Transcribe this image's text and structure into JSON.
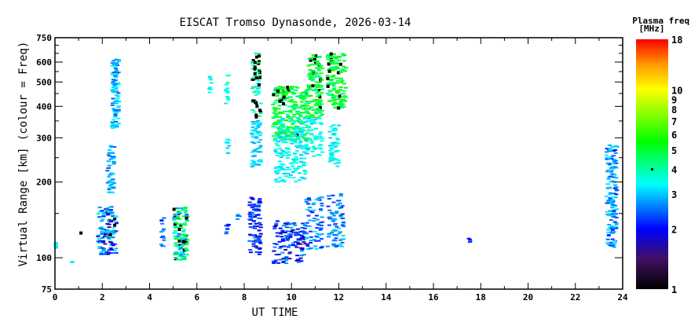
{
  "chart_data": {
    "type": "scatter",
    "title": "EISCAT Tromso Dynasonde, 2026-03-14",
    "xlabel": "UT TIME",
    "ylabel": "Virtual Range [km] (colour = Freq)",
    "xlim": [
      0,
      24
    ],
    "ylim": [
      75,
      750
    ],
    "yscale": "log",
    "xticks": [
      0,
      2,
      4,
      6,
      8,
      10,
      12,
      14,
      16,
      18,
      20,
      22,
      24
    ],
    "xticks_minor_step": 1,
    "yticks": [
      75,
      100,
      200,
      300,
      400,
      500,
      600,
      750
    ],
    "yticks_minor": [
      150,
      250,
      350,
      450,
      550,
      650,
      700
    ],
    "colorbar": {
      "label_line1": "Plasma freq.",
      "label_line2": "[MHz]",
      "range": [
        1,
        18
      ],
      "scale": "log",
      "ticks": [
        1,
        2,
        3,
        4,
        5,
        6,
        7,
        8,
        9,
        10,
        18
      ],
      "marker_value": 4,
      "colors": [
        "#000000",
        "#401060",
        "#0000ff",
        "#00ffff",
        "#00ff00",
        "#ffff00",
        "#ff9900",
        "#ff0000"
      ]
    },
    "note": "echo clusters: hour range, virtual range km, plasma freq MHz, approx echo count, fraction of black (low-confidence) points",
    "clusters": [
      {
        "t": [
          0.0,
          0.05
        ],
        "km": [
          108,
          116
        ],
        "f": [
          3.0,
          3.5
        ],
        "n": 6,
        "black": 0
      },
      {
        "t": [
          0.7,
          0.75
        ],
        "km": [
          95,
          98
        ],
        "f": [
          3.0,
          3.3
        ],
        "n": 3,
        "black": 0
      },
      {
        "t": [
          1.05,
          1.1
        ],
        "km": [
          124,
          127
        ],
        "f": [
          1.0,
          1.1
        ],
        "n": 1,
        "black": 1
      },
      {
        "t": [
          1.8,
          2.6
        ],
        "km": [
          103,
          160
        ],
        "f": [
          1.5,
          3.5
        ],
        "n": 120,
        "black": 0.03
      },
      {
        "t": [
          2.2,
          2.5
        ],
        "km": [
          180,
          280
        ],
        "f": [
          2.4,
          3.2
        ],
        "n": 50,
        "black": 0
      },
      {
        "t": [
          2.4,
          2.7
        ],
        "km": [
          320,
          630
        ],
        "f": [
          2.3,
          3.6
        ],
        "n": 90,
        "black": 0
      },
      {
        "t": [
          4.45,
          4.6
        ],
        "km": [
          108,
          155
        ],
        "f": [
          2.0,
          3.0
        ],
        "n": 14,
        "black": 0
      },
      {
        "t": [
          5.0,
          5.6
        ],
        "km": [
          98,
          160
        ],
        "f": [
          2.5,
          5.5
        ],
        "n": 140,
        "black": 0.12
      },
      {
        "t": [
          6.5,
          6.6
        ],
        "km": [
          445,
          530
        ],
        "f": [
          3.2,
          3.8
        ],
        "n": 8,
        "black": 0
      },
      {
        "t": [
          7.2,
          7.35
        ],
        "km": [
          260,
          300
        ],
        "f": [
          3.0,
          3.6
        ],
        "n": 10,
        "black": 0
      },
      {
        "t": [
          7.2,
          7.35
        ],
        "km": [
          400,
          540
        ],
        "f": [
          3.2,
          3.8
        ],
        "n": 14,
        "black": 0
      },
      {
        "t": [
          7.2,
          7.35
        ],
        "km": [
          118,
          140
        ],
        "f": [
          2.0,
          2.6
        ],
        "n": 8,
        "black": 0
      },
      {
        "t": [
          7.7,
          7.8
        ],
        "km": [
          135,
          150
        ],
        "f": [
          2.3,
          2.7
        ],
        "n": 4,
        "black": 0
      },
      {
        "t": [
          8.3,
          8.7
        ],
        "km": [
          360,
          650
        ],
        "f": [
          3.2,
          4.8
        ],
        "n": 60,
        "black": 0.3
      },
      {
        "t": [
          8.3,
          8.7
        ],
        "km": [
          230,
          350
        ],
        "f": [
          2.8,
          3.4
        ],
        "n": 60,
        "black": 0
      },
      {
        "t": [
          8.2,
          8.7
        ],
        "km": [
          100,
          175
        ],
        "f": [
          1.7,
          2.6
        ],
        "n": 90,
        "black": 0
      },
      {
        "t": [
          9.2,
          10.7
        ],
        "km": [
          290,
          480
        ],
        "f": [
          3.8,
          6.0
        ],
        "n": 260,
        "black": 0.06
      },
      {
        "t": [
          9.3,
          10.6
        ],
        "km": [
          200,
          360
        ],
        "f": [
          3.0,
          3.8
        ],
        "n": 170,
        "black": 0
      },
      {
        "t": [
          9.2,
          10.6
        ],
        "km": [
          95,
          140
        ],
        "f": [
          1.5,
          2.8
        ],
        "n": 130,
        "black": 0
      },
      {
        "t": [
          10.7,
          11.3
        ],
        "km": [
          360,
          640
        ],
        "f": [
          4.0,
          6.0
        ],
        "n": 140,
        "black": 0.05
      },
      {
        "t": [
          10.6,
          11.3
        ],
        "km": [
          250,
          360
        ],
        "f": [
          3.0,
          3.8
        ],
        "n": 60,
        "black": 0
      },
      {
        "t": [
          10.6,
          11.3
        ],
        "km": [
          108,
          175
        ],
        "f": [
          2.0,
          3.2
        ],
        "n": 70,
        "black": 0
      },
      {
        "t": [
          11.5,
          12.3
        ],
        "km": [
          390,
          650
        ],
        "f": [
          4.0,
          6.2
        ],
        "n": 150,
        "black": 0.1
      },
      {
        "t": [
          11.6,
          12.0
        ],
        "km": [
          230,
          340
        ],
        "f": [
          3.0,
          3.8
        ],
        "n": 50,
        "black": 0
      },
      {
        "t": [
          11.5,
          12.2
        ],
        "km": [
          110,
          180
        ],
        "f": [
          2.2,
          3.2
        ],
        "n": 80,
        "black": 0
      },
      {
        "t": [
          17.45,
          17.55
        ],
        "km": [
          112,
          122
        ],
        "f": [
          2.0,
          2.3
        ],
        "n": 4,
        "black": 0
      },
      {
        "t": [
          23.3,
          23.75
        ],
        "km": [
          110,
          280
        ],
        "f": [
          2.0,
          3.4
        ],
        "n": 160,
        "black": 0
      }
    ]
  }
}
